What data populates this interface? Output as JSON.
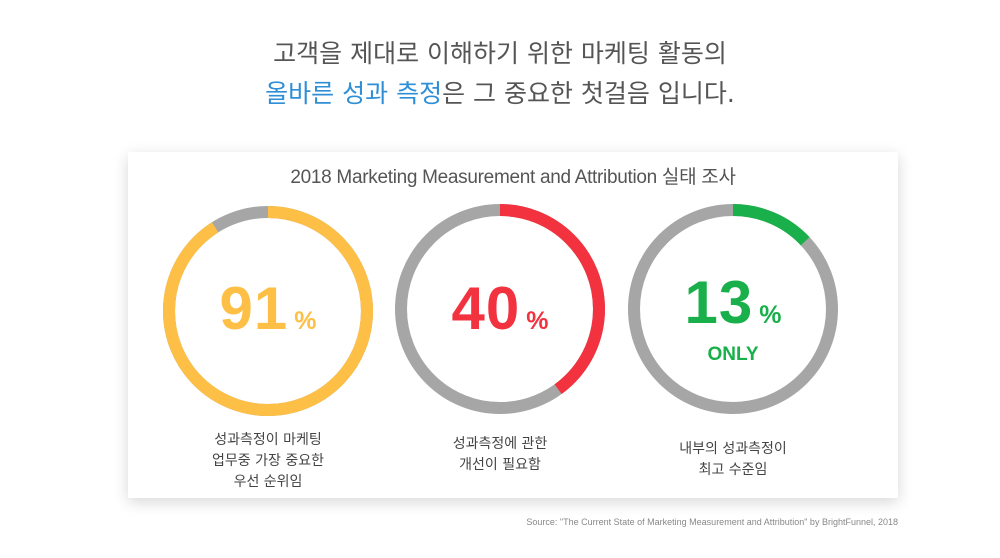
{
  "headline": {
    "line1": "고객을 제대로 이해하기 위한 마케팅 활동의",
    "line2_highlight": "올바른 성과 측정",
    "line2_rest": "은 그 중요한 첫걸음 입니다."
  },
  "source": "Source: \"The Current State of Marketing Measurement and Attribution\" by BrightFunnel, 2018",
  "colors": {
    "track": "#a6a6a6",
    "highlight": "#2e8fd6"
  },
  "chart_data": {
    "type": "pie",
    "title": "2018 Marketing Measurement and Attribution 실태 조사",
    "items": [
      {
        "value": 91,
        "value_label": "91",
        "unit": "%",
        "sub_label": "",
        "color": "#fdbf45",
        "caption_lines": [
          "성과측정이 마케팅",
          "업무중 가장 중요한",
          "우선 순위임"
        ]
      },
      {
        "value": 40,
        "value_label": "40",
        "unit": "%",
        "sub_label": "",
        "color": "#f2323f",
        "caption_lines": [
          "성과측정에 관한",
          "개선이 필요함"
        ]
      },
      {
        "value": 13,
        "value_label": "13",
        "unit": "%",
        "sub_label": "ONLY",
        "color": "#19b04b",
        "caption_lines": [
          "내부의 성과측정이",
          "최고 수준임"
        ]
      }
    ]
  }
}
